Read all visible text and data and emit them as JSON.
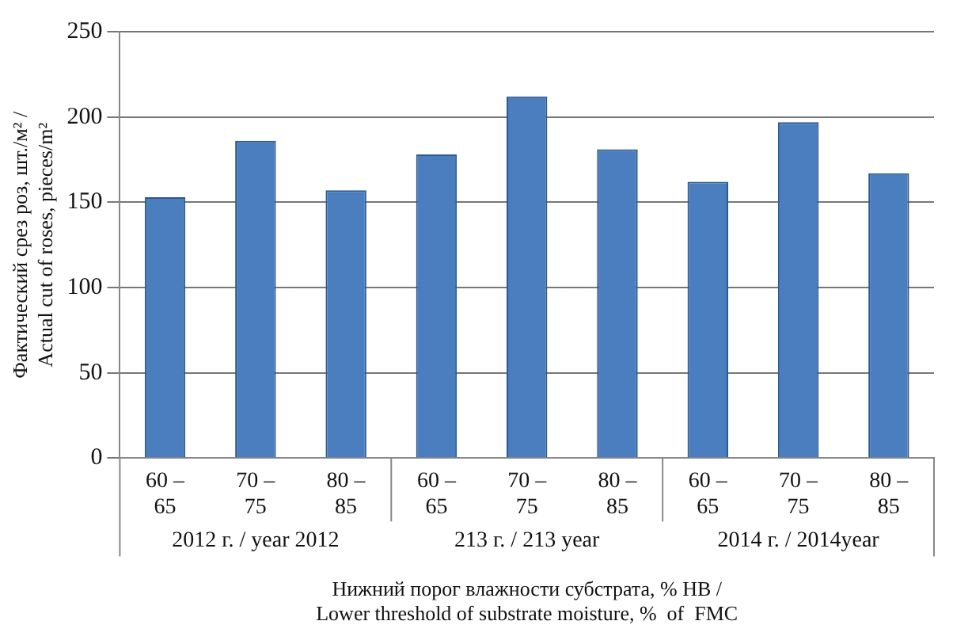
{
  "chart_data": {
    "type": "bar",
    "categories": [
      "60 – 65",
      "70 – 75",
      "80 – 85",
      "60 – 65",
      "70 – 75",
      "80 – 85",
      "60 – 65",
      "70 – 75",
      "80 – 85"
    ],
    "values": [
      153,
      186,
      157,
      178,
      212,
      181,
      162,
      197,
      167
    ],
    "color": "#4a7ebf",
    "ylim": [
      0,
      250
    ],
    "yticks": [
      0,
      50,
      100,
      150,
      200,
      250
    ],
    "ylabel": "Фактический срез роз, шт./м² /\nActual cut of roses, pieces/m²",
    "xlabel": "Нижний порог влажности субстрата, % HB /\nLower threshold of substrate moisture, %  of  FMC",
    "annotations": [
      "2012 г. / year 2012",
      "213 г. / 213 year",
      "2014 г. / 2014year"
    ],
    "grid": "y",
    "legend": false
  }
}
